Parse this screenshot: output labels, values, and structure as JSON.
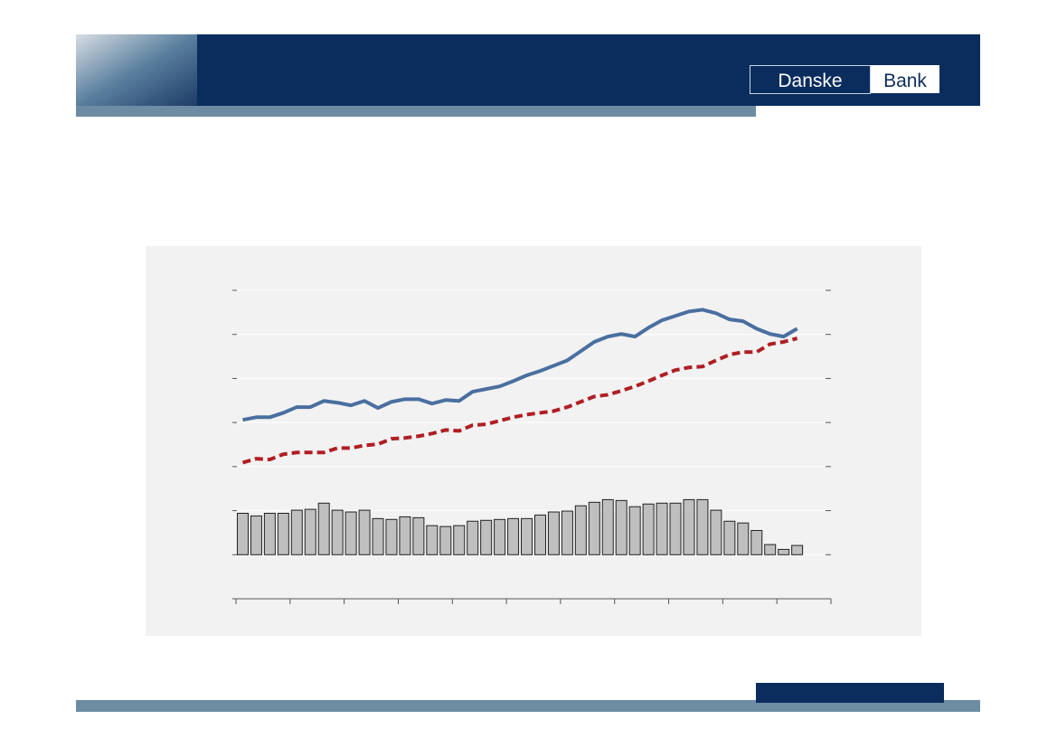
{
  "logo": {
    "left": "Danske",
    "right": "Bank"
  },
  "chart_data": {
    "type": "combo",
    "x": [
      0.5,
      1.5,
      2.5,
      3.5,
      4.5,
      5.5,
      6.5,
      7.5,
      8.5,
      9.5,
      10.5,
      11.5,
      12.5,
      13.5,
      14.5,
      15.5,
      16.5,
      17.5,
      18.5,
      19.5,
      20.5,
      21.5,
      22.5,
      23.5,
      24.5,
      25.5,
      26.5,
      27.5,
      28.5,
      29.5,
      30.5,
      31.5,
      32.5,
      33.5,
      34.5,
      35.5,
      36.5,
      37.5,
      38.5,
      39.5,
      40.5,
      41.5
    ],
    "xlim": [
      0,
      44
    ],
    "xticks": [
      0,
      4,
      8,
      12,
      16,
      20,
      24,
      28,
      32,
      36,
      40,
      44
    ],
    "ylim": [
      -1,
      6
    ],
    "yticks": [
      -1,
      0,
      1,
      2,
      3,
      4,
      5,
      6
    ],
    "grid": true,
    "series": [
      {
        "type": "bar",
        "color": "#bfbfbf",
        "values": [
          0.94,
          0.88,
          0.94,
          0.94,
          1.01,
          1.03,
          1.17,
          1.01,
          0.97,
          1.01,
          0.82,
          0.8,
          0.86,
          0.84,
          0.66,
          0.64,
          0.66,
          0.76,
          0.78,
          0.8,
          0.82,
          0.82,
          0.9,
          0.97,
          0.99,
          1.11,
          1.19,
          1.25,
          1.23,
          1.09,
          1.15,
          1.17,
          1.17,
          1.25,
          1.25,
          1.01,
          0.76,
          0.72,
          0.55,
          0.23,
          0.12,
          0.21
        ]
      },
      {
        "type": "line",
        "color": "#4a6fa0",
        "values": [
          3.06,
          3.12,
          3.12,
          3.22,
          3.35,
          3.35,
          3.49,
          3.45,
          3.39,
          3.49,
          3.33,
          3.47,
          3.53,
          3.53,
          3.43,
          3.51,
          3.49,
          3.7,
          3.76,
          3.82,
          3.94,
          4.07,
          4.17,
          4.29,
          4.41,
          4.62,
          4.83,
          4.95,
          5.01,
          4.95,
          5.15,
          5.32,
          5.42,
          5.52,
          5.56,
          5.48,
          5.34,
          5.3,
          5.13,
          5.01,
          4.95,
          5.13
        ]
      },
      {
        "type": "line",
        "dashed": true,
        "color": "#b01e23",
        "values": [
          2.09,
          2.18,
          2.16,
          2.28,
          2.32,
          2.32,
          2.32,
          2.42,
          2.42,
          2.48,
          2.51,
          2.63,
          2.65,
          2.69,
          2.75,
          2.83,
          2.81,
          2.94,
          2.96,
          3.04,
          3.12,
          3.18,
          3.22,
          3.26,
          3.35,
          3.47,
          3.59,
          3.63,
          3.72,
          3.82,
          3.94,
          4.07,
          4.19,
          4.25,
          4.27,
          4.41,
          4.54,
          4.6,
          4.6,
          4.78,
          4.83,
          4.91
        ]
      }
    ]
  }
}
